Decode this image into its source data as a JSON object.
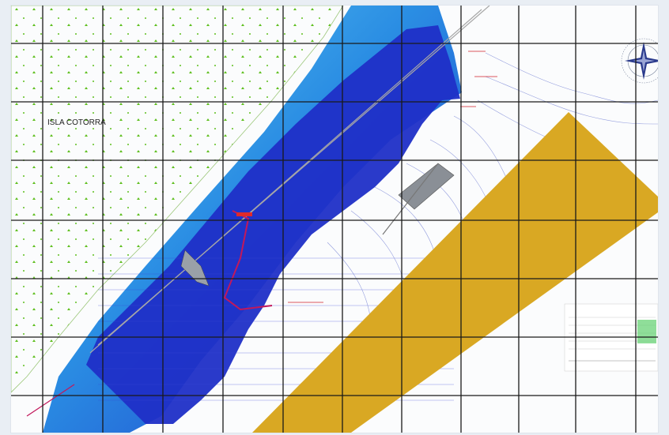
{
  "map": {
    "island_label": "ISLA COTORRA",
    "band_label": "",
    "red_notes": [
      "",
      "",
      ""
    ],
    "colors": {
      "water_deep": "#1f2fc7",
      "water_shallow": "#35b6ee",
      "vegetation_marks": "#5fbf1f",
      "grid": "#1a1a1a",
      "band": "#d9a823",
      "contour": "#7a86d6",
      "road": "#c2185b"
    },
    "icons": [
      "compass-rose-icon",
      "north-arrow-icon"
    ]
  },
  "grid": {
    "columns": 11,
    "rows": 7
  },
  "profile_panel": {
    "title": ""
  }
}
